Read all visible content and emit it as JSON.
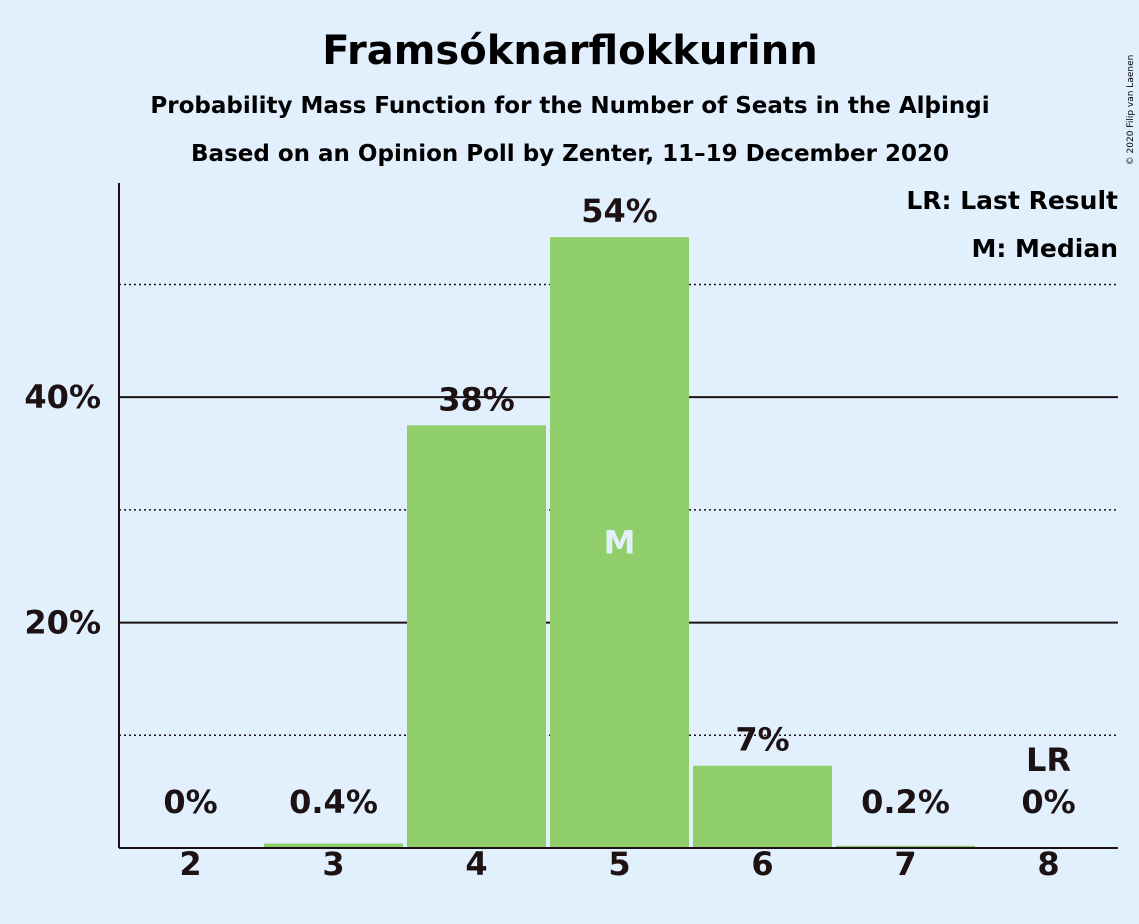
{
  "chart_data": {
    "type": "bar",
    "title": "Framsóknarflokkurinn",
    "subtitle": "Probability Mass Function for the Number of Seats in the Alþingi",
    "subtitle2": "Based on an Opinion Poll by Zenter, 11–19 December 2020",
    "copyright": "© 2020 Filip van Laenen",
    "categories": [
      "2",
      "3",
      "4",
      "5",
      "6",
      "7",
      "8"
    ],
    "values": [
      0,
      0.4,
      37.5,
      54.2,
      7.3,
      0.2,
      0
    ],
    "value_labels": [
      "0%",
      "0.4%",
      "38%",
      "54%",
      "7%",
      "0.2%",
      "0%"
    ],
    "ylim": [
      0,
      59
    ],
    "yticks": [
      {
        "value": 20,
        "label": "20%"
      },
      {
        "value": 40,
        "label": "40%"
      }
    ],
    "minor_gridlines": [
      10,
      30,
      50
    ],
    "median_category": "5",
    "median_marker": "M",
    "last_result_category": "8",
    "last_result_marker": "LR",
    "legend": [
      "LR: Last Result",
      "M: Median"
    ],
    "legend_position": "top-right",
    "colors": {
      "bar": "#8fce68",
      "background": "#e2f0fe",
      "text": "#1d1213",
      "median_text": "#e2f0fe"
    }
  }
}
